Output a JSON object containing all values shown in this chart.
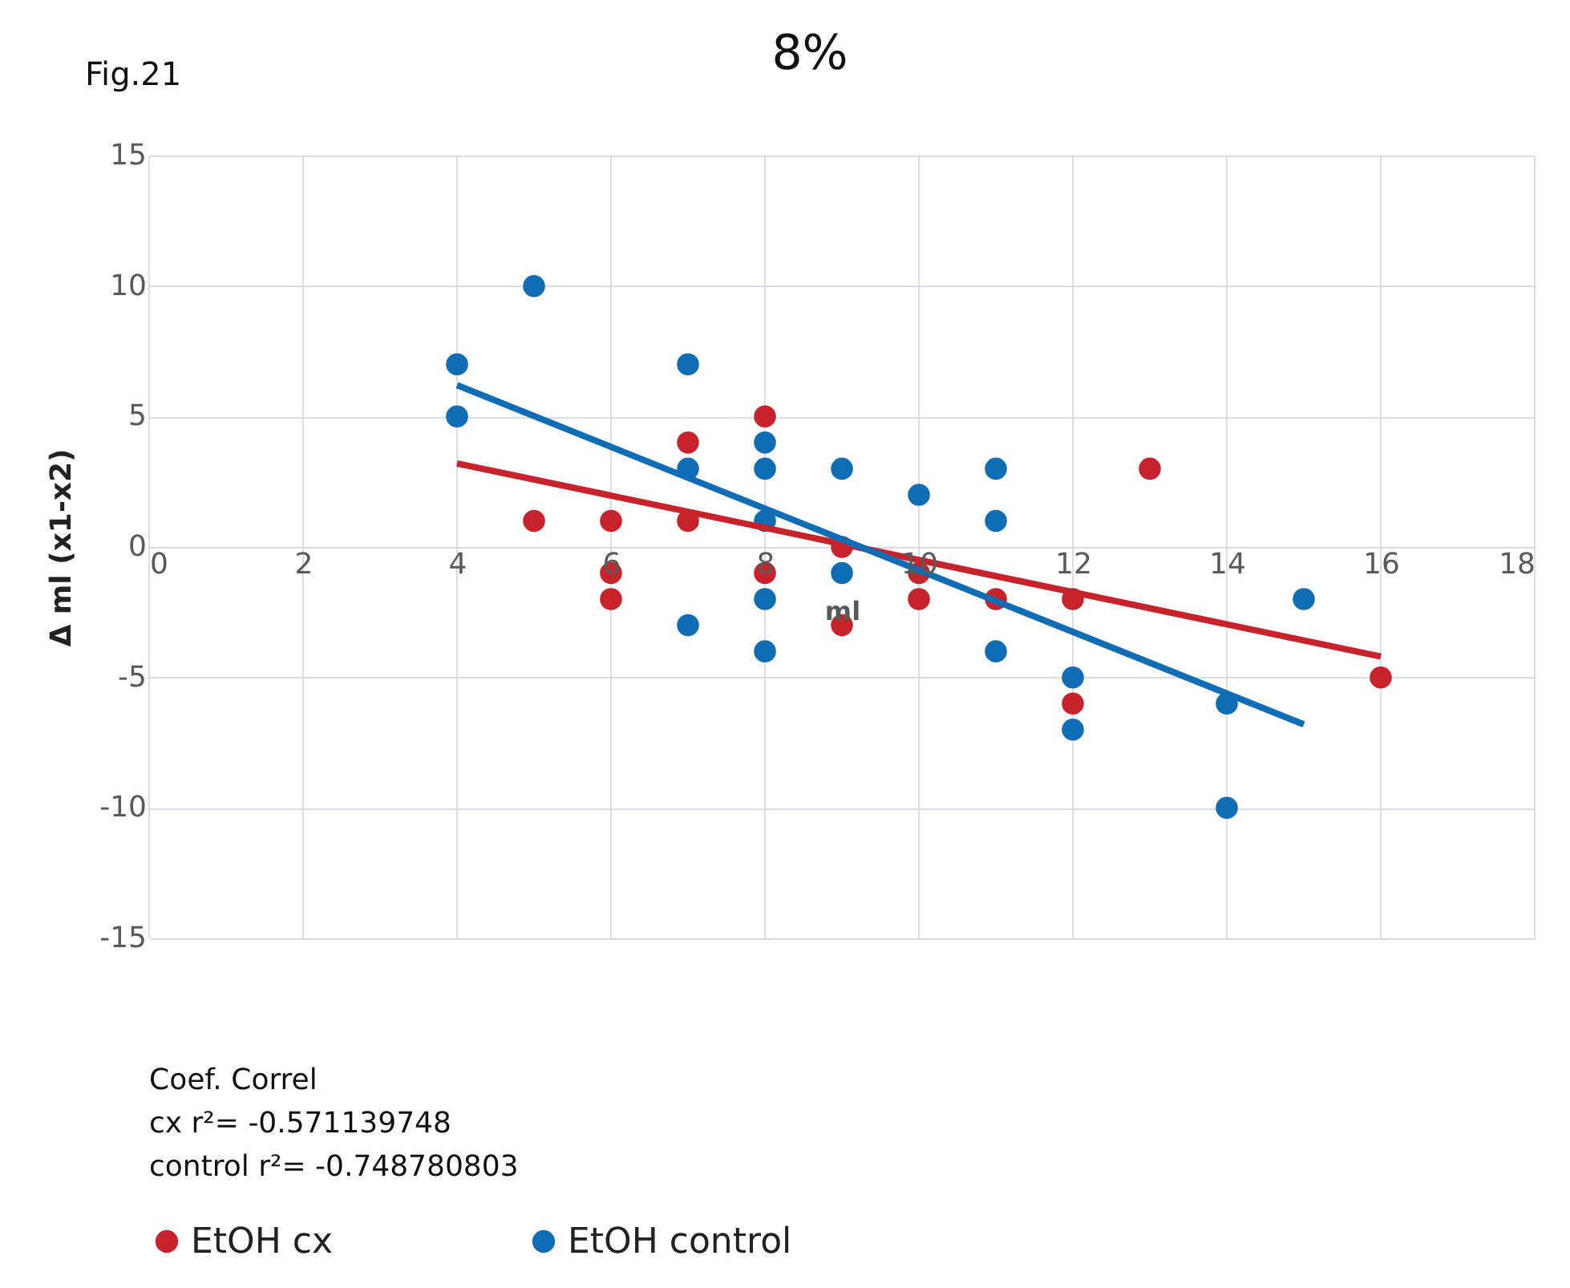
{
  "chart_data": {
    "type": "scatter",
    "title": "8%",
    "xlabel": "ml",
    "ylabel": "Δ ml (x1-x2)",
    "xlim": [
      0,
      18
    ],
    "xticks": [
      0,
      2,
      4,
      6,
      8,
      10,
      12,
      14,
      16,
      18
    ],
    "ylim": [
      -15,
      15
    ],
    "yticks": [
      -15,
      -10,
      -5,
      0,
      5,
      10,
      15
    ],
    "grid": true,
    "legend": "bottom",
    "annotations": [
      "Fig.21",
      "Coef. Correl",
      "cx  r²= -0.571139748",
      "control r²= -0.748780803"
    ],
    "series": [
      {
        "name": "EtOH cx",
        "color": "#c8232c",
        "marker": "circle",
        "x": [
          5,
          6,
          6,
          6,
          7,
          7,
          8,
          8,
          9,
          9,
          10,
          10,
          11,
          12,
          12,
          13,
          16
        ],
        "values": [
          1,
          1,
          -1,
          -2,
          4,
          1,
          5,
          -1,
          0,
          -3,
          -1,
          -2,
          -2,
          -2,
          -6,
          3,
          -5
        ]
      },
      {
        "name": "EtOH control",
        "color": "#0f6db5",
        "marker": "circle",
        "x": [
          4,
          4,
          5,
          7,
          7,
          7,
          8,
          8,
          8,
          8,
          8,
          9,
          9,
          10,
          11,
          11,
          11,
          12,
          12,
          14,
          14,
          15
        ],
        "values": [
          7,
          5,
          10,
          7,
          3,
          -3,
          4,
          3,
          1,
          -2,
          -4,
          3,
          -1,
          2,
          3,
          1,
          -4,
          -5,
          -7,
          -6,
          -10,
          -2
        ]
      },
      {
        "type": "line",
        "color": "#c8232c",
        "x": [
          4,
          16
        ],
        "values": [
          3.2,
          -4.2
        ]
      },
      {
        "type": "line",
        "color": "#0f6db5",
        "x": [
          4,
          15
        ],
        "values": [
          6.2,
          -6.8
        ]
      }
    ]
  }
}
